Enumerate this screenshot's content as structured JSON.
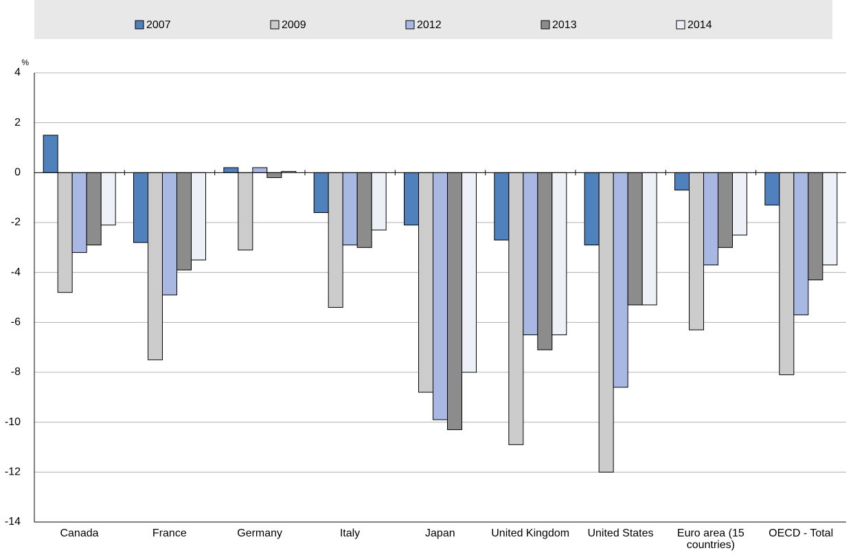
{
  "chart_data": {
    "type": "bar",
    "y_unit_label": "%",
    "categories": [
      "Canada",
      "France",
      "Germany",
      "Italy",
      "Japan",
      "United Kingdom",
      "United States",
      "Euro area (15 countries)",
      "OECD - Total"
    ],
    "series": [
      {
        "name": "2007",
        "color": "#4f81bd",
        "values": [
          1.5,
          -2.8,
          0.2,
          -1.6,
          -2.1,
          -2.7,
          -2.9,
          -0.7,
          -1.3
        ]
      },
      {
        "name": "2009",
        "color": "#cccccc",
        "values": [
          -4.8,
          -7.5,
          -3.1,
          -5.4,
          -8.8,
          -10.9,
          -12.0,
          -6.3,
          -8.1
        ]
      },
      {
        "name": "2012",
        "color": "#a9b8e3",
        "values": [
          -3.2,
          -4.9,
          0.2,
          -2.9,
          -9.9,
          -6.5,
          -8.6,
          -3.7,
          -5.7
        ]
      },
      {
        "name": "2013",
        "color": "#8c8c8c",
        "values": [
          -2.9,
          -3.9,
          -0.2,
          -3.0,
          -10.3,
          -7.1,
          -5.3,
          -3.0,
          -4.3
        ]
      },
      {
        "name": "2014",
        "color": "#eef0f7",
        "values": [
          -2.1,
          -3.5,
          0.05,
          -2.3,
          -8.0,
          -6.5,
          -5.3,
          -2.5,
          -3.7
        ]
      }
    ],
    "ylim": [
      -14,
      4
    ],
    "yticks": [
      -14,
      -12,
      -10,
      -8,
      -6,
      -4,
      -2,
      0,
      2,
      4
    ],
    "grid": true,
    "legend": "top"
  }
}
